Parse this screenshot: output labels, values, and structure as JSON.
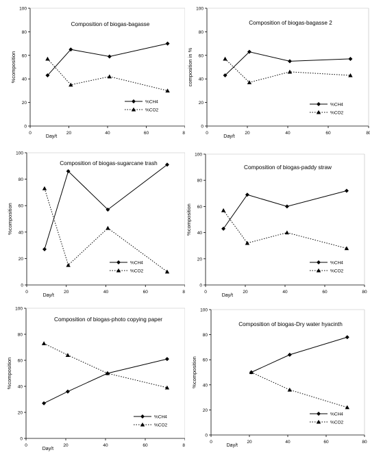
{
  "chart_data": [
    {
      "type": "line",
      "title": "Composition of biogas-bagasse",
      "ylabel": "%composition",
      "xlabel": "Day/t",
      "xlim": [
        0,
        80
      ],
      "ylim": [
        0,
        100
      ],
      "xticks": [
        0,
        20,
        40,
        60,
        80
      ],
      "yticks": [
        0,
        20,
        40,
        60,
        80,
        100
      ],
      "grid": false,
      "legend_position": "bottom-right",
      "series": [
        {
          "name": "%CH4",
          "marker": "diamond",
          "line": "solid",
          "x": [
            9,
            21,
            41,
            71
          ],
          "y": [
            43,
            65,
            59,
            70
          ]
        },
        {
          "name": "%CO2",
          "marker": "triangle",
          "line": "dotted",
          "x": [
            9,
            21,
            41,
            71
          ],
          "y": [
            57,
            35,
            42,
            30
          ]
        }
      ]
    },
    {
      "type": "line",
      "title": "Composition of biogas-bagasse 2",
      "ylabel": "composition in %",
      "xlabel": "Day/t",
      "xlim": [
        0,
        80
      ],
      "ylim": [
        0,
        100
      ],
      "xticks": [
        0,
        20,
        40,
        60,
        80
      ],
      "yticks": [
        0,
        20,
        40,
        60,
        80,
        100
      ],
      "grid": false,
      "legend_position": "bottom-right",
      "series": [
        {
          "name": "%CH4",
          "marker": "diamond",
          "line": "solid",
          "x": [
            9,
            21,
            41,
            71
          ],
          "y": [
            43,
            63,
            55,
            57
          ]
        },
        {
          "name": "%CO2",
          "marker": "triangle",
          "line": "dotted",
          "x": [
            9,
            21,
            41,
            71
          ],
          "y": [
            57,
            37,
            46,
            43
          ]
        }
      ]
    },
    {
      "type": "line",
      "title": "Composition of biogas-sugarcane trash",
      "ylabel": "%composition",
      "xlabel": "Day/t",
      "xlim": [
        0,
        80
      ],
      "ylim": [
        0,
        100
      ],
      "xticks": [
        0,
        20,
        40,
        60,
        80
      ],
      "yticks": [
        0,
        20,
        40,
        60,
        80,
        100
      ],
      "grid": false,
      "legend_position": "bottom-center",
      "series": [
        {
          "name": "%CH4",
          "marker": "diamond",
          "line": "solid",
          "x": [
            9,
            21,
            41,
            71
          ],
          "y": [
            27,
            86,
            57,
            91
          ]
        },
        {
          "name": "%CO2",
          "marker": "triangle",
          "line": "dotted",
          "x": [
            9,
            21,
            41,
            71
          ],
          "y": [
            73,
            15,
            43,
            10
          ]
        }
      ]
    },
    {
      "type": "line",
      "title": "Composition of biogas-paddy straw",
      "ylabel": "%composition",
      "xlabel": "Day/t",
      "xlim": [
        0,
        80
      ],
      "ylim": [
        0,
        100
      ],
      "xticks": [
        0,
        20,
        40,
        60,
        80
      ],
      "yticks": [
        0,
        20,
        40,
        60,
        80,
        100
      ],
      "grid": false,
      "legend_position": "bottom-right",
      "series": [
        {
          "name": "%CH4",
          "marker": "diamond",
          "line": "solid",
          "x": [
            9,
            21,
            41,
            71
          ],
          "y": [
            43,
            69,
            60,
            72
          ]
        },
        {
          "name": "%CO2",
          "marker": "triangle",
          "line": "dotted",
          "x": [
            9,
            21,
            41,
            71
          ],
          "y": [
            57,
            32,
            40,
            28
          ]
        }
      ]
    },
    {
      "type": "line",
      "title": "Composition of biogas-photo copying paper",
      "ylabel": "%composition",
      "xlabel": "Day/t",
      "xlim": [
        0,
        80
      ],
      "ylim": [
        0,
        100
      ],
      "xticks": [
        0,
        20,
        40,
        60,
        80
      ],
      "yticks": [
        0,
        20,
        40,
        60,
        80,
        100
      ],
      "grid": false,
      "legend_position": "bottom-right",
      "series": [
        {
          "name": "%CH4",
          "marker": "diamond",
          "line": "solid",
          "x": [
            9,
            21,
            41,
            71
          ],
          "y": [
            27,
            36,
            50,
            61
          ]
        },
        {
          "name": "%CO2",
          "marker": "triangle",
          "line": "dotted",
          "x": [
            9,
            21,
            41,
            71
          ],
          "y": [
            73,
            64,
            50,
            39
          ]
        }
      ]
    },
    {
      "type": "line",
      "title": "Composition of biogas-Dry water hyacinth",
      "ylabel": "%composition",
      "xlabel": "Day/t",
      "xlim": [
        0,
        80
      ],
      "ylim": [
        0,
        100
      ],
      "xticks": [
        0,
        20,
        40,
        60,
        80
      ],
      "yticks": [
        0,
        20,
        40,
        60,
        80,
        100
      ],
      "grid": false,
      "legend_position": "bottom-right",
      "series": [
        {
          "name": "%CH4",
          "marker": "diamond",
          "line": "solid",
          "x": [
            21,
            41,
            71
          ],
          "y": [
            50,
            64,
            78
          ]
        },
        {
          "name": "%CO2",
          "marker": "triangle",
          "line": "dotted",
          "x": [
            21,
            41,
            71
          ],
          "y": [
            50,
            36,
            22
          ]
        }
      ]
    }
  ]
}
